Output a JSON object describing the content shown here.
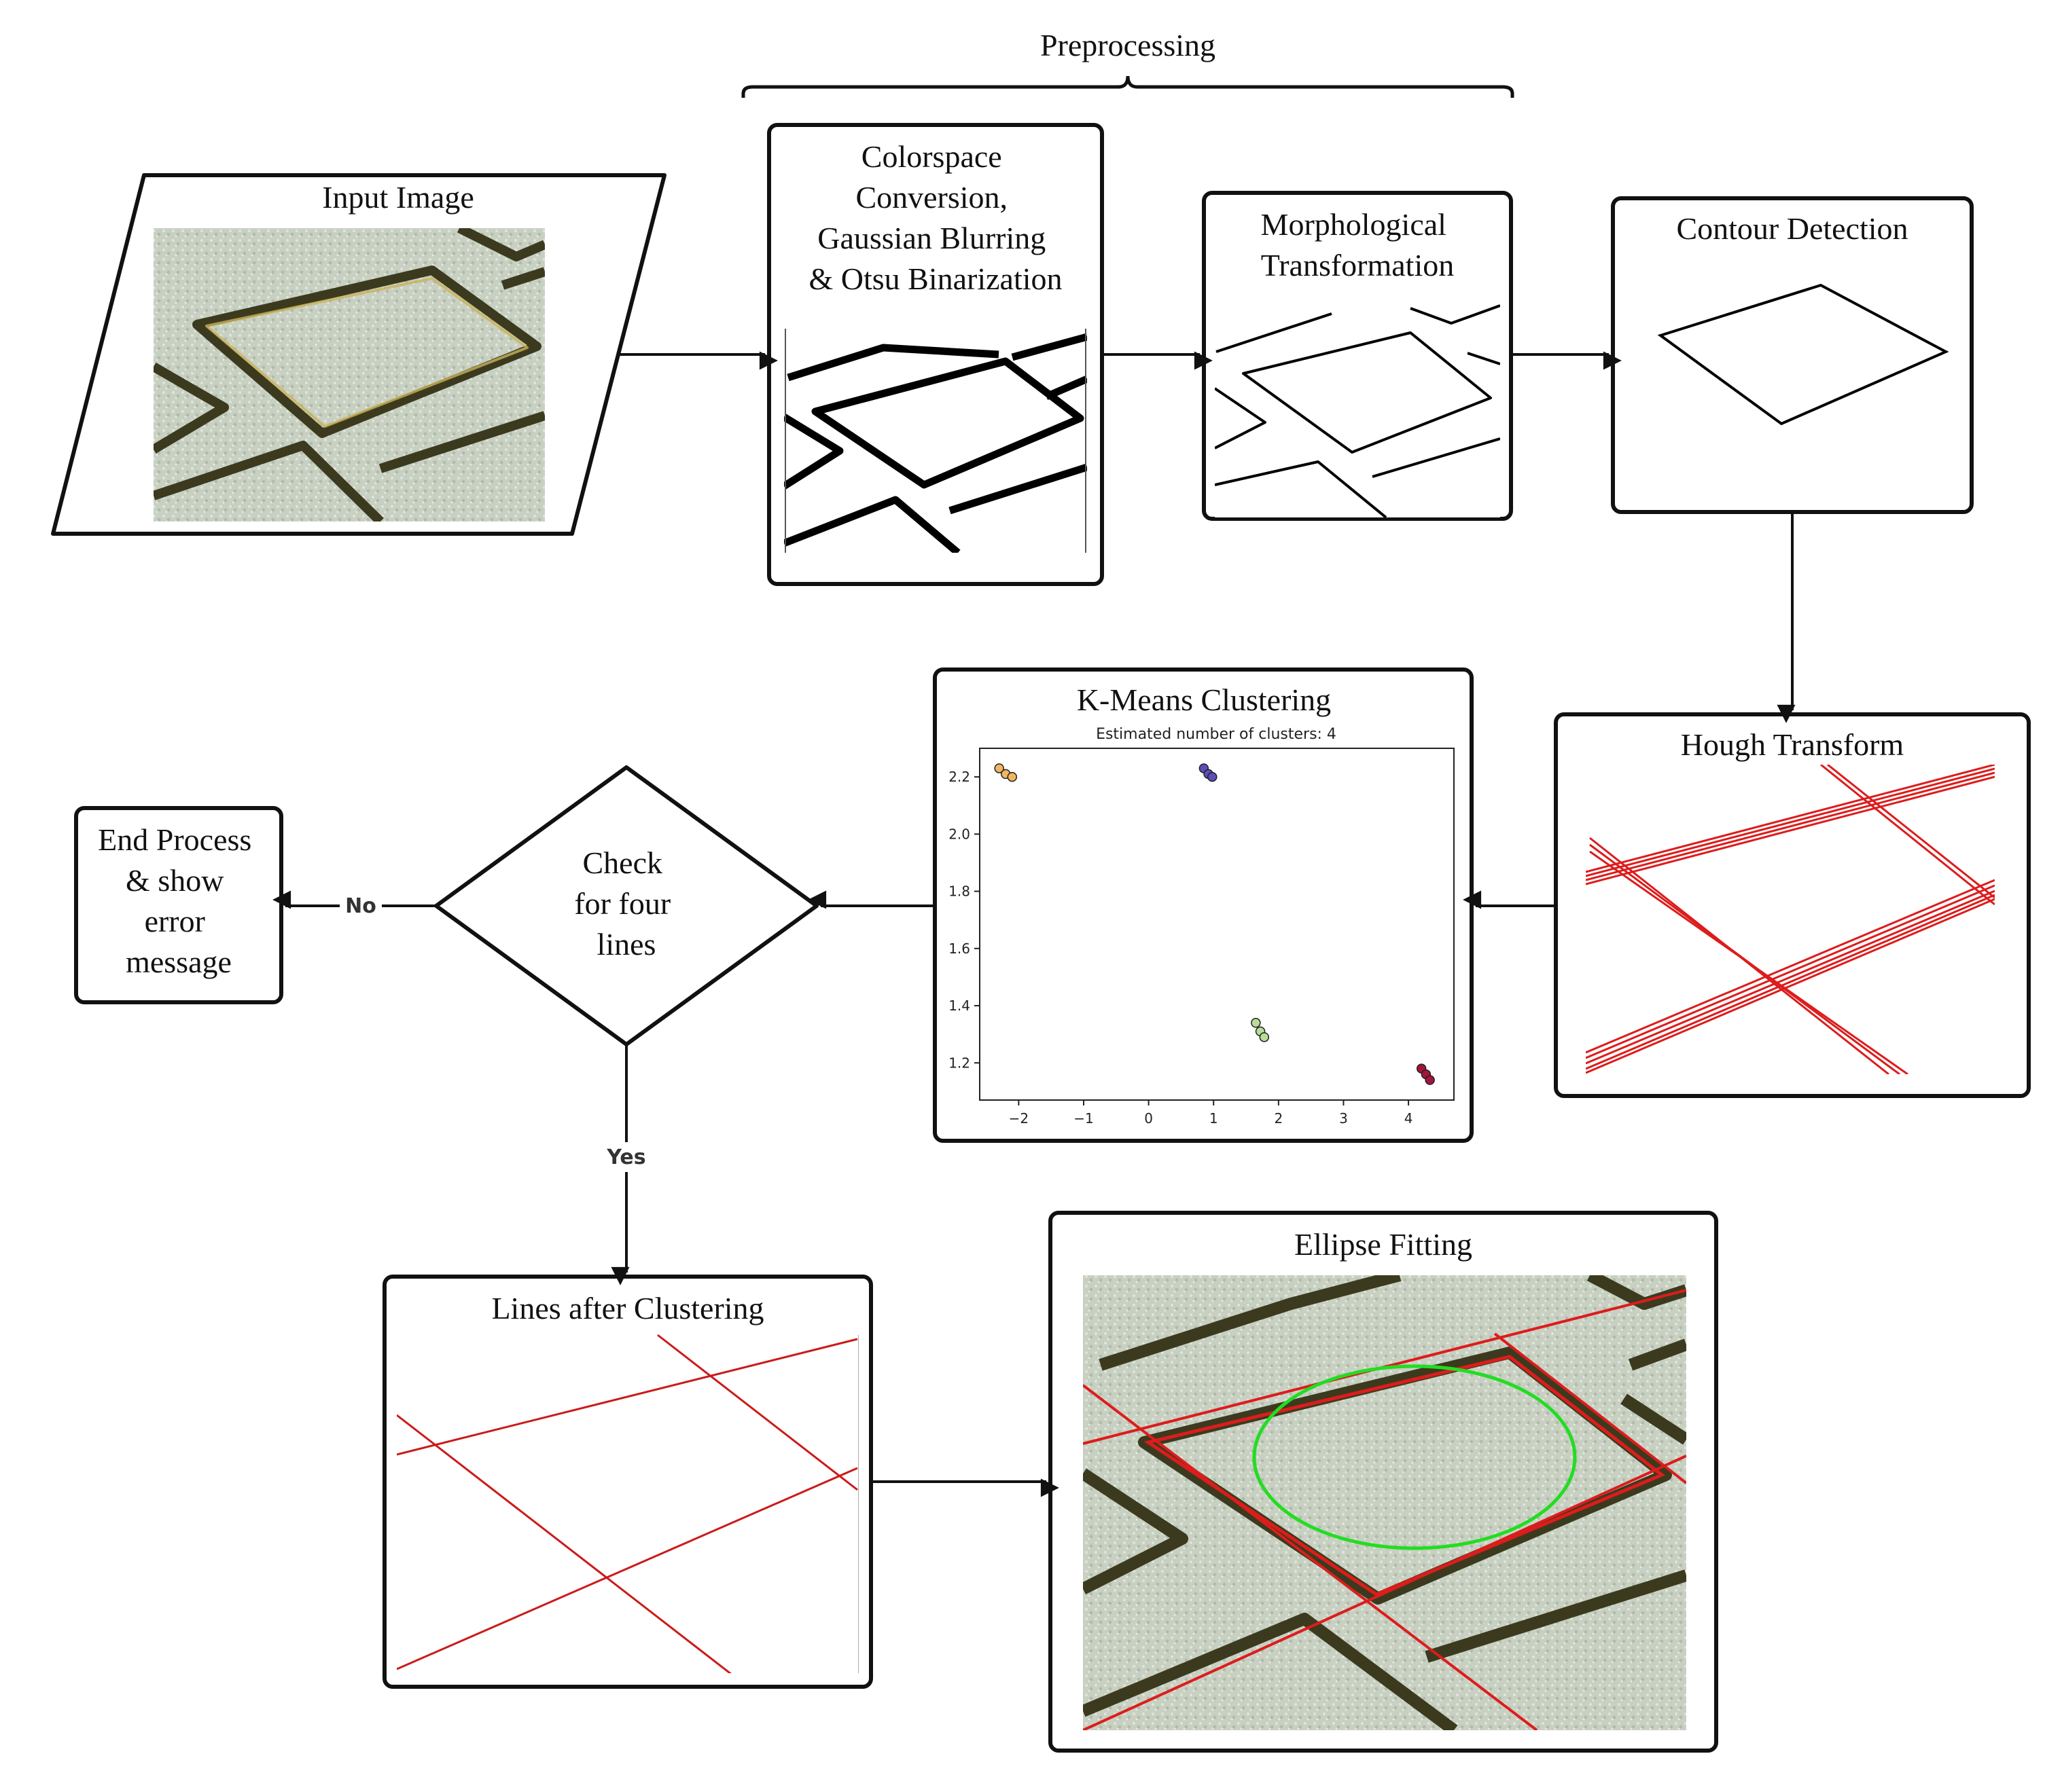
{
  "diagram": {
    "group_label": "Preprocessing",
    "nodes": {
      "input": {
        "title": "Input Image"
      },
      "preprocess": {
        "title_lines": [
          "Colorspace",
          "Conversion,",
          "Gaussian Blurring",
          "& Otsu Binarization"
        ]
      },
      "morph": {
        "title_lines": [
          "Morphological",
          "Transformation"
        ]
      },
      "contour": {
        "title": "Contour Detection"
      },
      "hough": {
        "title": "Hough Transform"
      },
      "kmeans": {
        "title": "K-Means Clustering"
      },
      "decision": {
        "title_lines": [
          "Check",
          "for four",
          "lines"
        ]
      },
      "end": {
        "title_lines": [
          "End Process",
          "& show",
          "error",
          "message"
        ]
      },
      "lines": {
        "title": "Lines after Clustering"
      },
      "ellipse": {
        "title": "Ellipse Fitting"
      }
    },
    "edges": {
      "no_label": "No",
      "yes_label": "Yes"
    },
    "colors": {
      "stroke": "#111111",
      "hough_red": "#dd1c1c",
      "ellipse_green": "#22dd22",
      "texture": "#c9d1c3",
      "groove": "#3c3a1e"
    }
  },
  "chart_data": {
    "type": "scatter",
    "title": "Estimated number of clusters: 4",
    "xlim": [
      -2.6,
      4.7
    ],
    "ylim": [
      1.07,
      2.3
    ],
    "xticks": [
      "−2",
      "−1",
      "0",
      "1",
      "2",
      "3",
      "4"
    ],
    "xtick_values": [
      -2,
      -1,
      0,
      1,
      2,
      3,
      4
    ],
    "yticks": [
      "1.2",
      "1.4",
      "1.6",
      "1.8",
      "2.0",
      "2.2"
    ],
    "ytick_values": [
      1.2,
      1.4,
      1.6,
      1.8,
      2.0,
      2.2
    ],
    "series": [
      {
        "color": "#f2b661",
        "points": [
          [
            -2.3,
            2.23
          ],
          [
            -2.2,
            2.21
          ],
          [
            -2.1,
            2.2
          ]
        ]
      },
      {
        "color": "#5b4fb8",
        "points": [
          [
            0.85,
            2.23
          ],
          [
            0.92,
            2.21
          ],
          [
            0.98,
            2.2
          ]
        ]
      },
      {
        "color": "#b8dd9a",
        "points": [
          [
            1.65,
            1.34
          ],
          [
            1.72,
            1.31
          ],
          [
            1.78,
            1.29
          ]
        ]
      },
      {
        "color": "#a3143a",
        "points": [
          [
            4.2,
            1.18
          ],
          [
            4.27,
            1.16
          ],
          [
            4.33,
            1.14
          ]
        ]
      }
    ]
  }
}
